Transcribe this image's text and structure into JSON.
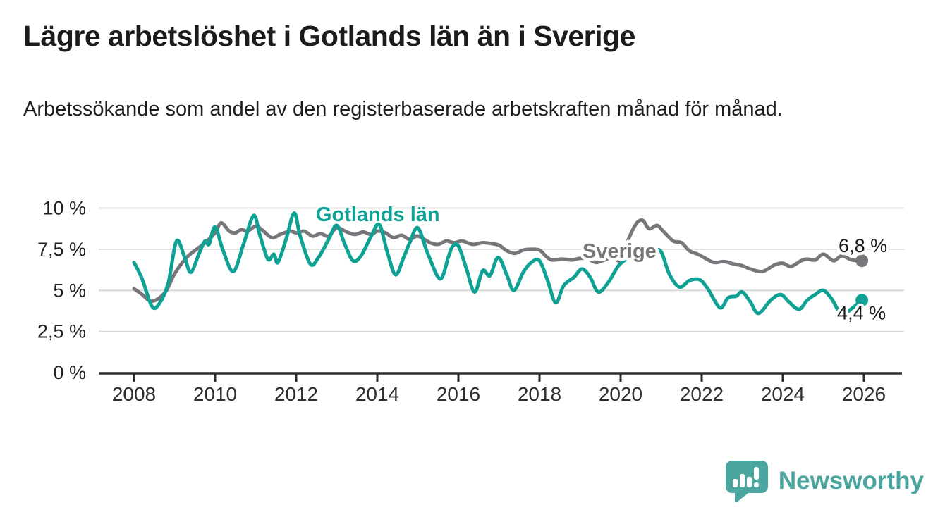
{
  "header": {
    "title": "Lägre arbetslöshet i Gotlands län än i Sverige",
    "subtitle": "Arbetssökande som andel av den registerbaserade arbetskraften månad för månad."
  },
  "chart_data": {
    "type": "line",
    "title": "Lägre arbetslöshet i Gotlands län än i Sverige",
    "subtitle": "Arbetssökande som andel av den registerbaserade arbetskraften månad för månad.",
    "xlabel": "",
    "ylabel": "",
    "unit": "%",
    "grid": true,
    "legend_position": "inline-labels",
    "x_axis": {
      "tick_values": [
        2008,
        2010,
        2012,
        2014,
        2016,
        2018,
        2020,
        2022,
        2024,
        2026
      ],
      "tick_labels": [
        "2008",
        "2010",
        "2012",
        "2014",
        "2016",
        "2018",
        "2020",
        "2022",
        "2024",
        "2026"
      ],
      "range": [
        2008,
        2026.2
      ]
    },
    "y_axis": {
      "tick_values": [
        0,
        2.5,
        5,
        7.5,
        10
      ],
      "tick_labels": [
        "0 %",
        "2,5 %",
        "5 %",
        "7,5 %",
        "10 %"
      ],
      "range": [
        0,
        10
      ]
    },
    "series": [
      {
        "name": "Sverige",
        "color": "#77777b",
        "end_label": "6,8 %",
        "end_value": 6.8,
        "points": [
          [
            2008.0,
            5.1
          ],
          [
            2008.2,
            4.75
          ],
          [
            2008.4,
            4.35
          ],
          [
            2008.6,
            4.5
          ],
          [
            2008.8,
            5.0
          ],
          [
            2009.0,
            6.0
          ],
          [
            2009.3,
            7.0
          ],
          [
            2009.6,
            7.6
          ],
          [
            2009.8,
            8.0
          ],
          [
            2010.0,
            8.5
          ],
          [
            2010.15,
            9.1
          ],
          [
            2010.35,
            8.6
          ],
          [
            2010.5,
            8.5
          ],
          [
            2010.65,
            8.7
          ],
          [
            2010.8,
            8.6
          ],
          [
            2011.0,
            8.9
          ],
          [
            2011.15,
            8.7
          ],
          [
            2011.4,
            8.2
          ],
          [
            2011.6,
            8.4
          ],
          [
            2011.85,
            8.6
          ],
          [
            2012.0,
            8.5
          ],
          [
            2012.2,
            8.6
          ],
          [
            2012.4,
            8.3
          ],
          [
            2012.6,
            8.45
          ],
          [
            2012.8,
            8.3
          ],
          [
            2013.0,
            8.8
          ],
          [
            2013.25,
            8.55
          ],
          [
            2013.45,
            8.4
          ],
          [
            2013.65,
            8.55
          ],
          [
            2013.85,
            8.4
          ],
          [
            2014.0,
            8.6
          ],
          [
            2014.2,
            8.5
          ],
          [
            2014.4,
            8.2
          ],
          [
            2014.6,
            8.35
          ],
          [
            2014.8,
            8.1
          ],
          [
            2015.0,
            8.3
          ],
          [
            2015.3,
            7.9
          ],
          [
            2015.5,
            7.8
          ],
          [
            2015.7,
            8.0
          ],
          [
            2015.9,
            7.9
          ],
          [
            2016.1,
            8.0
          ],
          [
            2016.35,
            7.8
          ],
          [
            2016.6,
            7.9
          ],
          [
            2016.8,
            7.85
          ],
          [
            2017.0,
            7.75
          ],
          [
            2017.2,
            7.4
          ],
          [
            2017.4,
            7.25
          ],
          [
            2017.6,
            7.45
          ],
          [
            2017.8,
            7.5
          ],
          [
            2018.0,
            7.45
          ],
          [
            2018.15,
            7.1
          ],
          [
            2018.3,
            6.85
          ],
          [
            2018.55,
            6.9
          ],
          [
            2018.8,
            6.85
          ],
          [
            2019.0,
            6.95
          ],
          [
            2019.2,
            6.9
          ],
          [
            2019.4,
            6.7
          ],
          [
            2019.6,
            6.85
          ],
          [
            2019.8,
            7.0
          ],
          [
            2020.0,
            6.85
          ],
          [
            2020.2,
            8.15
          ],
          [
            2020.4,
            9.1
          ],
          [
            2020.55,
            9.25
          ],
          [
            2020.7,
            8.75
          ],
          [
            2020.9,
            8.95
          ],
          [
            2021.05,
            8.6
          ],
          [
            2021.3,
            8.0
          ],
          [
            2021.5,
            7.9
          ],
          [
            2021.7,
            7.4
          ],
          [
            2021.9,
            7.2
          ],
          [
            2022.05,
            7.0
          ],
          [
            2022.3,
            6.7
          ],
          [
            2022.55,
            6.75
          ],
          [
            2022.8,
            6.6
          ],
          [
            2023.0,
            6.5
          ],
          [
            2023.2,
            6.3
          ],
          [
            2023.5,
            6.15
          ],
          [
            2023.8,
            6.55
          ],
          [
            2024.0,
            6.65
          ],
          [
            2024.2,
            6.45
          ],
          [
            2024.45,
            6.8
          ],
          [
            2024.6,
            6.9
          ],
          [
            2024.8,
            6.85
          ],
          [
            2025.0,
            7.2
          ],
          [
            2025.25,
            6.8
          ],
          [
            2025.45,
            7.1
          ],
          [
            2025.7,
            6.85
          ],
          [
            2025.95,
            6.8
          ]
        ]
      },
      {
        "name": "Gotlands län",
        "color": "#0fa294",
        "end_label": "4,4 %",
        "end_value": 4.4,
        "points": [
          [
            2008.0,
            6.7
          ],
          [
            2008.2,
            5.7
          ],
          [
            2008.45,
            4.0
          ],
          [
            2008.65,
            4.3
          ],
          [
            2008.85,
            5.5
          ],
          [
            2009.05,
            8.0
          ],
          [
            2009.25,
            7.0
          ],
          [
            2009.4,
            6.1
          ],
          [
            2009.6,
            7.2
          ],
          [
            2009.75,
            8.0
          ],
          [
            2009.85,
            7.8
          ],
          [
            2010.0,
            8.85
          ],
          [
            2010.2,
            7.4
          ],
          [
            2010.45,
            6.15
          ],
          [
            2010.7,
            7.8
          ],
          [
            2010.95,
            9.55
          ],
          [
            2011.1,
            8.4
          ],
          [
            2011.3,
            6.9
          ],
          [
            2011.45,
            7.2
          ],
          [
            2011.55,
            6.7
          ],
          [
            2011.75,
            8.1
          ],
          [
            2011.95,
            9.7
          ],
          [
            2012.1,
            8.3
          ],
          [
            2012.35,
            6.6
          ],
          [
            2012.55,
            7.0
          ],
          [
            2012.8,
            8.1
          ],
          [
            2013.0,
            8.95
          ],
          [
            2013.2,
            7.8
          ],
          [
            2013.4,
            6.8
          ],
          [
            2013.6,
            7.1
          ],
          [
            2013.85,
            8.3
          ],
          [
            2014.05,
            9.0
          ],
          [
            2014.25,
            7.3
          ],
          [
            2014.45,
            5.95
          ],
          [
            2014.65,
            7.0
          ],
          [
            2014.8,
            7.9
          ],
          [
            2015.0,
            8.8
          ],
          [
            2015.25,
            7.2
          ],
          [
            2015.55,
            5.7
          ],
          [
            2015.75,
            7.0
          ],
          [
            2015.85,
            7.65
          ],
          [
            2016.0,
            7.7
          ],
          [
            2016.2,
            6.3
          ],
          [
            2016.4,
            4.9
          ],
          [
            2016.6,
            6.2
          ],
          [
            2016.78,
            5.9
          ],
          [
            2016.98,
            7.0
          ],
          [
            2017.2,
            5.9
          ],
          [
            2017.37,
            5.0
          ],
          [
            2017.6,
            6.1
          ],
          [
            2017.8,
            6.7
          ],
          [
            2018.0,
            6.8
          ],
          [
            2018.2,
            5.6
          ],
          [
            2018.4,
            4.25
          ],
          [
            2018.6,
            5.3
          ],
          [
            2018.85,
            5.8
          ],
          [
            2019.05,
            6.3
          ],
          [
            2019.25,
            5.8
          ],
          [
            2019.45,
            4.9
          ],
          [
            2019.7,
            5.5
          ],
          [
            2019.95,
            6.5
          ],
          [
            2020.2,
            7.0
          ],
          [
            2020.5,
            7.5
          ],
          [
            2020.8,
            7.45
          ],
          [
            2021.0,
            7.35
          ],
          [
            2021.2,
            6.0
          ],
          [
            2021.45,
            5.2
          ],
          [
            2021.7,
            5.6
          ],
          [
            2021.95,
            5.65
          ],
          [
            2022.15,
            5.1
          ],
          [
            2022.45,
            3.95
          ],
          [
            2022.65,
            4.55
          ],
          [
            2022.85,
            4.65
          ],
          [
            2023.0,
            4.9
          ],
          [
            2023.2,
            4.3
          ],
          [
            2023.4,
            3.6
          ],
          [
            2023.7,
            4.4
          ],
          [
            2023.95,
            4.75
          ],
          [
            2024.15,
            4.3
          ],
          [
            2024.4,
            3.85
          ],
          [
            2024.6,
            4.4
          ],
          [
            2024.8,
            4.75
          ],
          [
            2025.0,
            5.0
          ],
          [
            2025.2,
            4.5
          ],
          [
            2025.45,
            3.55
          ],
          [
            2025.7,
            3.9
          ],
          [
            2025.95,
            4.4
          ]
        ]
      }
    ],
    "colors": {
      "gridline": "#d8d8d8",
      "axis": "#2d2d2d",
      "tick_label": "#2e2e2e",
      "end_label_text": "#1a1a1a"
    }
  },
  "footer": {
    "brand": "Newsworthy",
    "logo_color": "#4aa69e"
  }
}
